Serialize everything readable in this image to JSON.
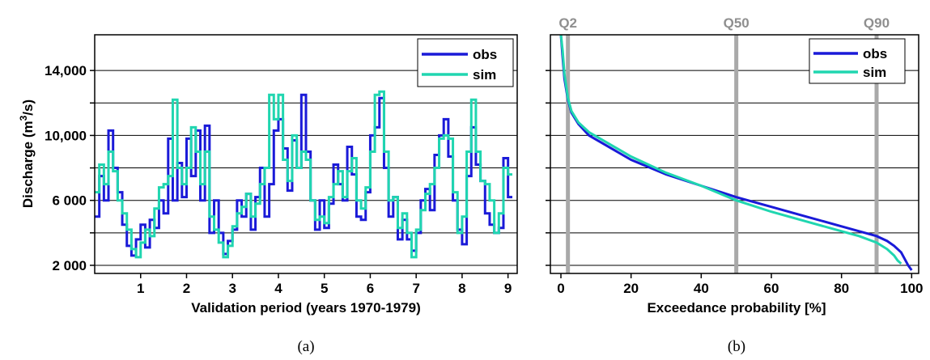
{
  "chart_data": [
    {
      "type": "line",
      "panel_label": "(a)",
      "xlabel": "Validation period (years 1970-1979)",
      "ylabel": "Discharge (m3/s)",
      "ylabel_parts": [
        "Discharge (m",
        "3",
        "/s)"
      ],
      "xlim": [
        0,
        9.2
      ],
      "ylim": [
        1500,
        16200
      ],
      "x_ticks": [
        1,
        2,
        3,
        4,
        5,
        6,
        7,
        8,
        9
      ],
      "x_tick_labels": [
        "1",
        "2",
        "3",
        "4",
        "5",
        "6",
        "7",
        "8",
        "9"
      ],
      "y_tick_values": [
        2000,
        6000,
        10000,
        14000
      ],
      "y_tick_labels": [
        "2 000",
        "6 000",
        "10,000",
        "14,000"
      ],
      "gridlines_y": [
        2000,
        4000,
        6000,
        8000,
        10000,
        12000,
        14000
      ],
      "grid": "horizontal",
      "legend": "top-right",
      "series": [
        {
          "name": "obs",
          "color": "#1a1ad8",
          "x": [
            0,
            0.1,
            0.2,
            0.3,
            0.4,
            0.5,
            0.6,
            0.7,
            0.8,
            0.9,
            1.0,
            1.1,
            1.2,
            1.3,
            1.4,
            1.5,
            1.6,
            1.7,
            1.8,
            1.9,
            2.0,
            2.1,
            2.2,
            2.3,
            2.4,
            2.5,
            2.6,
            2.7,
            2.8,
            2.9,
            3.0,
            3.1,
            3.2,
            3.3,
            3.4,
            3.5,
            3.6,
            3.7,
            3.8,
            3.9,
            4.0,
            4.1,
            4.2,
            4.3,
            4.4,
            4.5,
            4.6,
            4.7,
            4.8,
            4.9,
            5.0,
            5.1,
            5.2,
            5.3,
            5.4,
            5.5,
            5.6,
            5.7,
            5.8,
            5.9,
            6.0,
            6.1,
            6.2,
            6.3,
            6.4,
            6.5,
            6.6,
            6.7,
            6.8,
            6.9,
            7.0,
            7.1,
            7.2,
            7.3,
            7.4,
            7.5,
            7.6,
            7.7,
            7.8,
            7.9,
            8.0,
            8.1,
            8.2,
            8.3,
            8.4,
            8.5,
            8.6,
            8.7,
            8.8,
            8.9,
            9.0
          ],
          "values": [
            5000,
            7500,
            6000,
            10300,
            8000,
            6500,
            4500,
            3200,
            2600,
            3600,
            4500,
            3100,
            4800,
            4300,
            6000,
            5200,
            9800,
            6000,
            8300,
            6200,
            9800,
            7500,
            10300,
            6000,
            10600,
            4000,
            6000,
            4000,
            2700,
            3500,
            4200,
            6000,
            5000,
            6400,
            4200,
            6200,
            8000,
            5000,
            7000,
            10300,
            11000,
            9200,
            6600,
            9700,
            8000,
            12500,
            9000,
            6000,
            4200,
            6000,
            4300,
            5800,
            8200,
            7000,
            6000,
            9300,
            7600,
            5000,
            4800,
            6500,
            10000,
            10500,
            12300,
            8000,
            5000,
            6200,
            3600,
            4800,
            3600,
            2900,
            4000,
            6000,
            6700,
            5400,
            8800,
            10000,
            11000,
            8700,
            6000,
            4200,
            3300,
            7500,
            10500,
            8200,
            7200,
            5200,
            4500,
            4000,
            4300,
            8600,
            6200
          ]
        },
        {
          "name": "sim",
          "color": "#20d6b0",
          "x": [
            0,
            0.1,
            0.2,
            0.3,
            0.4,
            0.5,
            0.6,
            0.7,
            0.8,
            0.9,
            1.0,
            1.1,
            1.2,
            1.3,
            1.4,
            1.5,
            1.6,
            1.7,
            1.8,
            1.9,
            2.0,
            2.1,
            2.2,
            2.3,
            2.4,
            2.5,
            2.6,
            2.7,
            2.8,
            2.9,
            3.0,
            3.1,
            3.2,
            3.3,
            3.4,
            3.5,
            3.6,
            3.7,
            3.8,
            3.9,
            4.0,
            4.1,
            4.2,
            4.3,
            4.4,
            4.5,
            4.6,
            4.7,
            4.8,
            4.9,
            5.0,
            5.1,
            5.2,
            5.3,
            5.4,
            5.5,
            5.6,
            5.7,
            5.8,
            5.9,
            6.0,
            6.1,
            6.2,
            6.3,
            6.4,
            6.5,
            6.6,
            6.7,
            6.8,
            6.9,
            7.0,
            7.1,
            7.2,
            7.3,
            7.4,
            7.5,
            7.6,
            7.7,
            7.8,
            7.9,
            8.0,
            8.1,
            8.2,
            8.3,
            8.4,
            8.5,
            8.6,
            8.7,
            8.8,
            8.9,
            9.0
          ],
          "values": [
            6500,
            8200,
            7000,
            9000,
            7800,
            6000,
            5200,
            4200,
            3000,
            2500,
            3400,
            4200,
            3800,
            5500,
            6800,
            7000,
            7500,
            12200,
            8000,
            7000,
            8000,
            10500,
            9000,
            7000,
            9000,
            5000,
            4200,
            3400,
            2500,
            3200,
            4400,
            5200,
            5600,
            6400,
            5000,
            5800,
            7000,
            8000,
            12500,
            11000,
            12500,
            8500,
            7200,
            10000,
            8000,
            9000,
            8500,
            6000,
            4800,
            5000,
            4600,
            6200,
            7000,
            7800,
            6200,
            7800,
            8600,
            6000,
            5500,
            6800,
            9000,
            12500,
            12700,
            9000,
            6000,
            6200,
            4300,
            5200,
            4000,
            2500,
            4200,
            5400,
            6400,
            7000,
            8000,
            9800,
            10000,
            9800,
            6500,
            4000,
            5000,
            9000,
            12200,
            9000,
            7200,
            7000,
            6000,
            4000,
            5200,
            8000,
            7600
          ]
        }
      ]
    },
    {
      "type": "line",
      "panel_label": "(b)",
      "xlabel": "Exceedance probability [%]",
      "ylabel": "",
      "xlim": [
        -3,
        102
      ],
      "ylim": [
        1500,
        16200
      ],
      "x_ticks": [
        0,
        20,
        40,
        60,
        80,
        100
      ],
      "x_tick_labels": [
        "0",
        "20",
        "40",
        "60",
        "80",
        "100"
      ],
      "gridlines_y": [
        2000,
        4000,
        6000,
        8000,
        10000,
        12000,
        14000
      ],
      "grid": "horizontal",
      "legend": "top-right",
      "reference_lines": [
        {
          "label": "Q2",
          "x": 2
        },
        {
          "label": "Q50",
          "x": 50
        },
        {
          "label": "Q90",
          "x": 90
        }
      ],
      "series": [
        {
          "name": "obs",
          "color": "#1a1ad8",
          "x": [
            0,
            0.5,
            1,
            2,
            3,
            5,
            8,
            12,
            20,
            30,
            40,
            50,
            60,
            70,
            80,
            85,
            90,
            93,
            95,
            97,
            98,
            99,
            100
          ],
          "values": [
            16200,
            14800,
            13500,
            12200,
            11400,
            10700,
            10000,
            9500,
            8500,
            7600,
            6900,
            6200,
            5600,
            5000,
            4400,
            4100,
            3800,
            3500,
            3200,
            2800,
            2400,
            2000,
            1700
          ]
        },
        {
          "name": "sim",
          "color": "#20d6b0",
          "x": [
            0,
            0.5,
            1,
            2,
            3,
            5,
            8,
            12,
            20,
            30,
            40,
            50,
            60,
            70,
            80,
            85,
            90,
            93,
            95,
            96,
            97
          ],
          "values": [
            16200,
            15200,
            13800,
            12300,
            11500,
            10800,
            10200,
            9700,
            8700,
            7700,
            6900,
            6000,
            5300,
            4700,
            4100,
            3800,
            3400,
            3000,
            2600,
            2300,
            2100
          ]
        }
      ]
    }
  ]
}
